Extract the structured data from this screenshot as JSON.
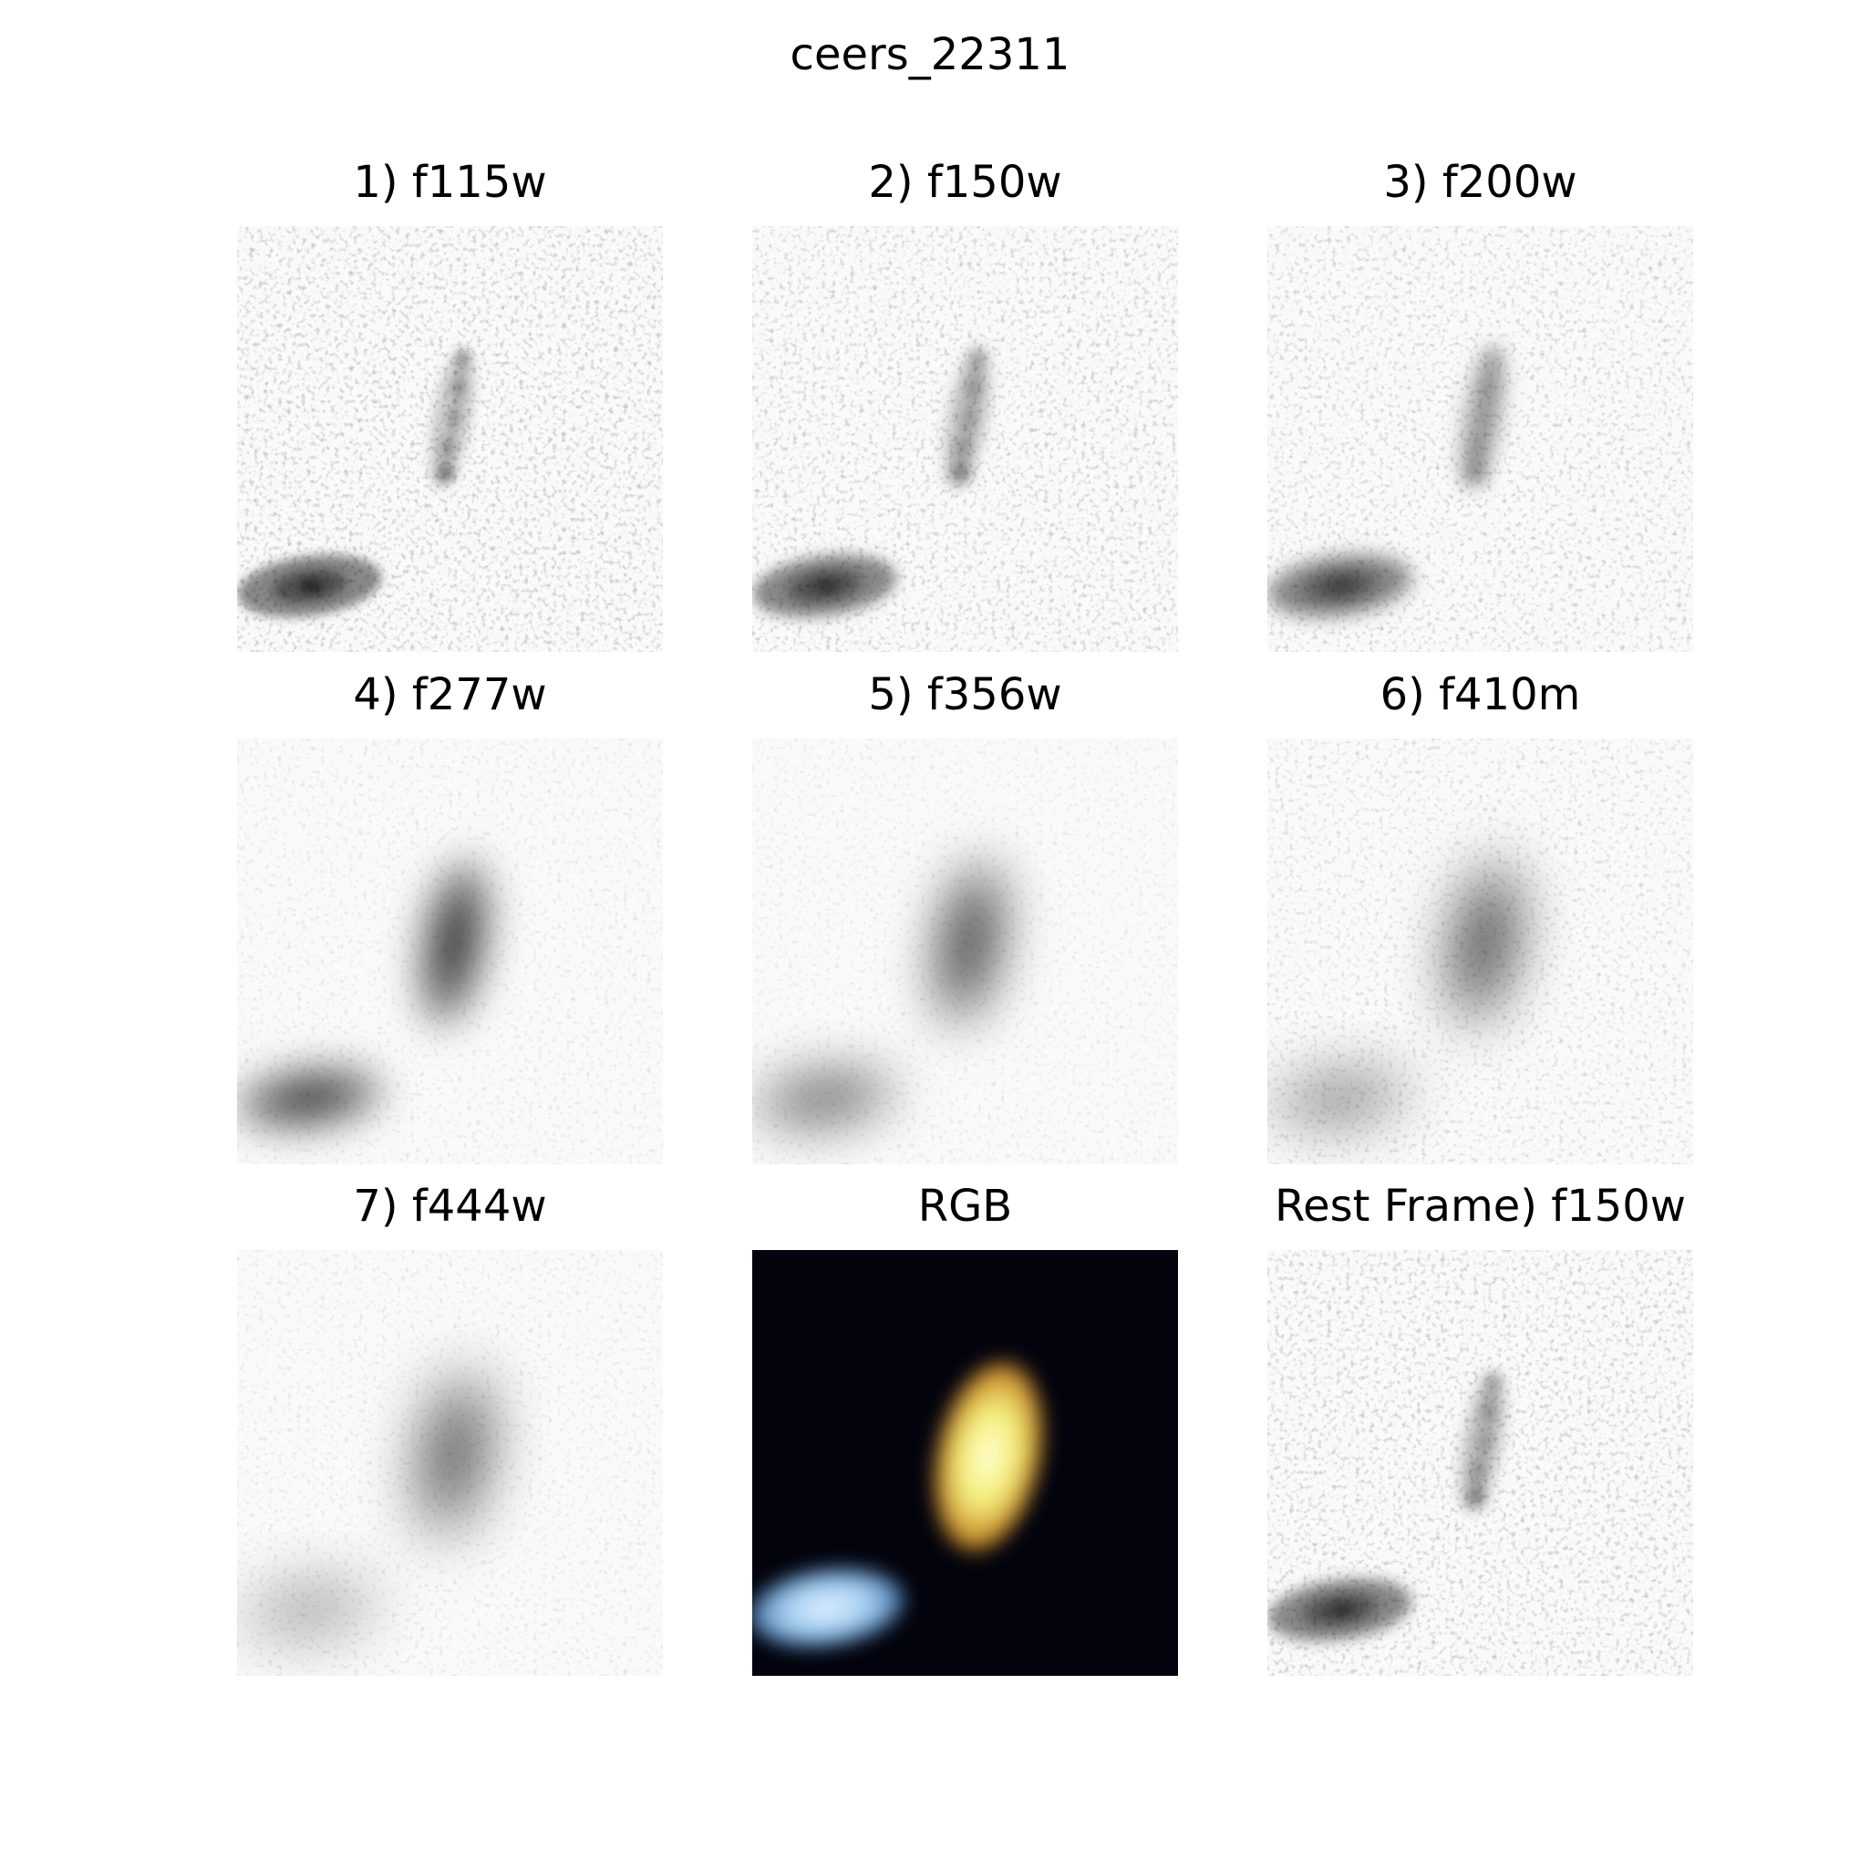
{
  "figure": {
    "title": "ceers_22311"
  },
  "panels": [
    {
      "title": "1) f115w",
      "kind": "gray",
      "noise": 0.42,
      "blur": 1.2,
      "target": "knotty",
      "target_level": 0.55,
      "companion_level": 0.85
    },
    {
      "title": "2) f150w",
      "kind": "gray",
      "noise": 0.4,
      "blur": 1.6,
      "target": "knotty",
      "target_level": 0.65,
      "companion_level": 0.85
    },
    {
      "title": "3) f200w",
      "kind": "gray",
      "noise": 0.38,
      "blur": 2.2,
      "target": "knotty",
      "target_level": 0.8,
      "companion_level": 0.85
    },
    {
      "title": "4) f277w",
      "kind": "gray",
      "noise": 0.22,
      "blur": 4.5,
      "target": "smooth",
      "target_level": 0.95,
      "companion_level": 0.9
    },
    {
      "title": "5) f356w",
      "kind": "gray",
      "noise": 0.2,
      "blur": 6.0,
      "target": "smooth",
      "target_level": 0.95,
      "companion_level": 0.7
    },
    {
      "title": "6) f410m",
      "kind": "gray",
      "noise": 0.3,
      "blur": 6.5,
      "target": "smooth",
      "target_level": 0.95,
      "companion_level": 0.55
    },
    {
      "title": "7) f444w",
      "kind": "gray",
      "noise": 0.22,
      "blur": 7.0,
      "target": "smooth",
      "target_level": 0.95,
      "companion_level": 0.45
    },
    {
      "title": "RGB",
      "kind": "rgb",
      "target_color": "#f5f07a",
      "target_edge_color": "#c88a2a",
      "companion_color": "#a9d3f5",
      "companion_edge_color": "#4f7fb0",
      "background_color": "#02030d"
    },
    {
      "title": "Rest Frame) f150w",
      "kind": "gray",
      "noise": 0.4,
      "blur": 1.6,
      "target": "knotty",
      "target_level": 0.65,
      "companion_level": 0.85
    }
  ]
}
